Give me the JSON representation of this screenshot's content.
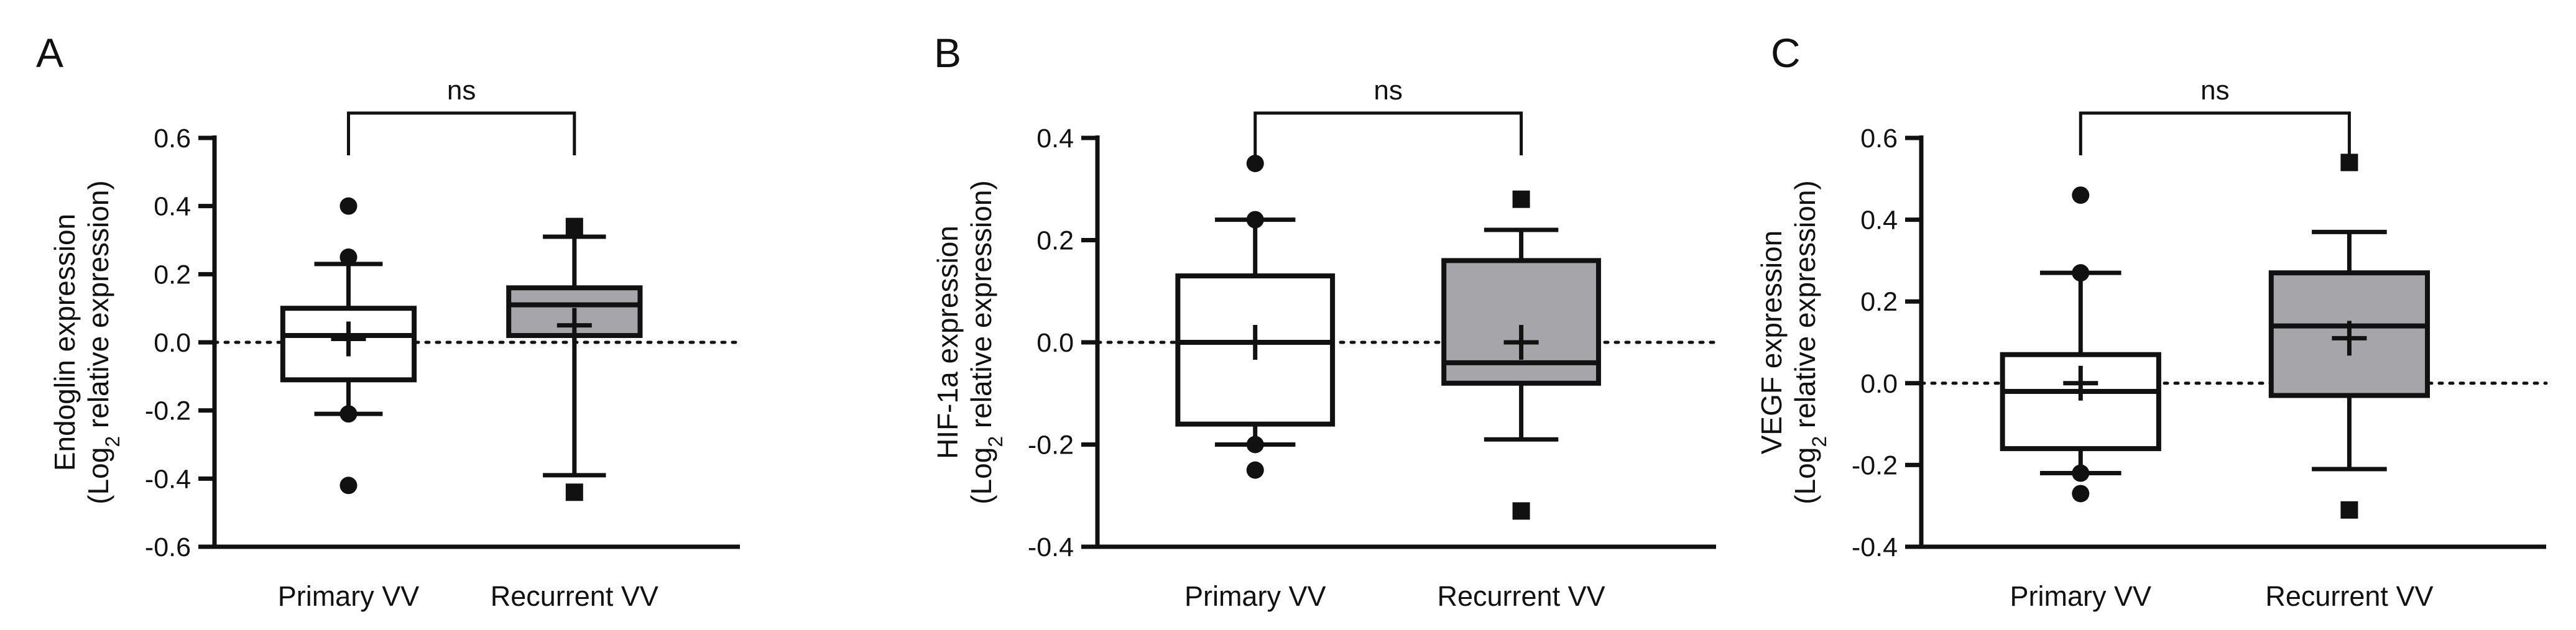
{
  "figure": {
    "panels": [
      {
        "letter": "A",
        "ylabel_line1": "Endoglin expression",
        "ylabel_line2_prefix": "(Log",
        "ylabel_sub": "2",
        "ylabel_line2_suffix": " relative expression)",
        "significance": "ns"
      },
      {
        "letter": "B",
        "ylabel_line1": "HIF-1a expression",
        "ylabel_line2_prefix": "(Log",
        "ylabel_sub": "2",
        "ylabel_line2_suffix": " relative expression)",
        "significance": "ns"
      },
      {
        "letter": "C",
        "ylabel_line1": "VEGF expression",
        "ylabel_line2_prefix": "(Log",
        "ylabel_sub": "2",
        "ylabel_line2_suffix": " relative expression)",
        "significance": "ns"
      }
    ]
  },
  "colors": {
    "box_primary": "#ffffff",
    "box_recurrent": "#a6a5aa",
    "ink": "#111111"
  },
  "chart_data": [
    {
      "type": "box",
      "title": "",
      "ylabel": "Endoglin expression (Log2 relative expression)",
      "categories": [
        "Primary VV",
        "Recurrent VV"
      ],
      "ylim": [
        -0.6,
        0.6
      ],
      "yticks": [
        -0.6,
        -0.4,
        -0.2,
        0.0,
        0.2,
        0.4,
        0.6
      ],
      "ytick_labels": [
        "-0.6",
        "-0.4",
        "-0.2",
        "0.0",
        "0.2",
        "0.4",
        "0.6"
      ],
      "zero_reference_line": true,
      "significance": "ns",
      "boxes": [
        {
          "name": "Primary VV",
          "fill": "white",
          "marker": "circle",
          "q1": -0.11,
          "median": 0.02,
          "q3": 0.1,
          "whisker_low": -0.21,
          "whisker_high": 0.23,
          "mean": 0.01,
          "outliers": [
            0.4,
            0.25,
            -0.21,
            -0.42
          ]
        },
        {
          "name": "Recurrent VV",
          "fill": "gray",
          "marker": "square",
          "q1": 0.02,
          "median": 0.11,
          "q3": 0.16,
          "whisker_low": -0.39,
          "whisker_high": 0.31,
          "mean": 0.05,
          "outliers": [
            0.34,
            -0.44
          ]
        }
      ]
    },
    {
      "type": "box",
      "title": "",
      "ylabel": "HIF-1a expression (Log2 relative expression)",
      "categories": [
        "Primary VV",
        "Recurrent VV"
      ],
      "ylim": [
        -0.4,
        0.4
      ],
      "yticks": [
        -0.4,
        -0.2,
        0.0,
        0.2,
        0.4
      ],
      "ytick_labels": [
        "-0.4",
        "-0.2",
        "0.0",
        "0.2",
        "0.4"
      ],
      "zero_reference_line": true,
      "significance": "ns",
      "boxes": [
        {
          "name": "Primary VV",
          "fill": "white",
          "marker": "circle",
          "q1": -0.16,
          "median": 0.0,
          "q3": 0.13,
          "whisker_low": -0.2,
          "whisker_high": 0.24,
          "mean": 0.0,
          "outliers": [
            0.35,
            0.24,
            -0.2,
            -0.25
          ]
        },
        {
          "name": "Recurrent VV",
          "fill": "gray",
          "marker": "square",
          "q1": -0.08,
          "median": -0.04,
          "q3": 0.16,
          "whisker_low": -0.19,
          "whisker_high": 0.22,
          "mean": 0.0,
          "outliers": [
            0.28,
            -0.33
          ]
        }
      ]
    },
    {
      "type": "box",
      "title": "",
      "ylabel": "VEGF expression (Log2 relative expression)",
      "categories": [
        "Primary VV",
        "Recurrent VV"
      ],
      "ylim": [
        -0.4,
        0.6
      ],
      "yticks": [
        -0.4,
        -0.2,
        0.0,
        0.2,
        0.4,
        0.6
      ],
      "ytick_labels": [
        "-0.4",
        "-0.2",
        "0.0",
        "0.2",
        "0.4",
        "0.6"
      ],
      "zero_reference_line": true,
      "significance": "ns",
      "boxes": [
        {
          "name": "Primary VV",
          "fill": "white",
          "marker": "circle",
          "q1": -0.16,
          "median": -0.02,
          "q3": 0.07,
          "whisker_low": -0.22,
          "whisker_high": 0.27,
          "mean": 0.0,
          "outliers": [
            0.46,
            0.27,
            -0.22,
            -0.27
          ]
        },
        {
          "name": "Recurrent VV",
          "fill": "gray",
          "marker": "square",
          "q1": -0.03,
          "median": 0.14,
          "q3": 0.27,
          "whisker_low": -0.21,
          "whisker_high": 0.37,
          "mean": 0.11,
          "outliers": [
            0.54,
            -0.31
          ]
        }
      ]
    }
  ]
}
